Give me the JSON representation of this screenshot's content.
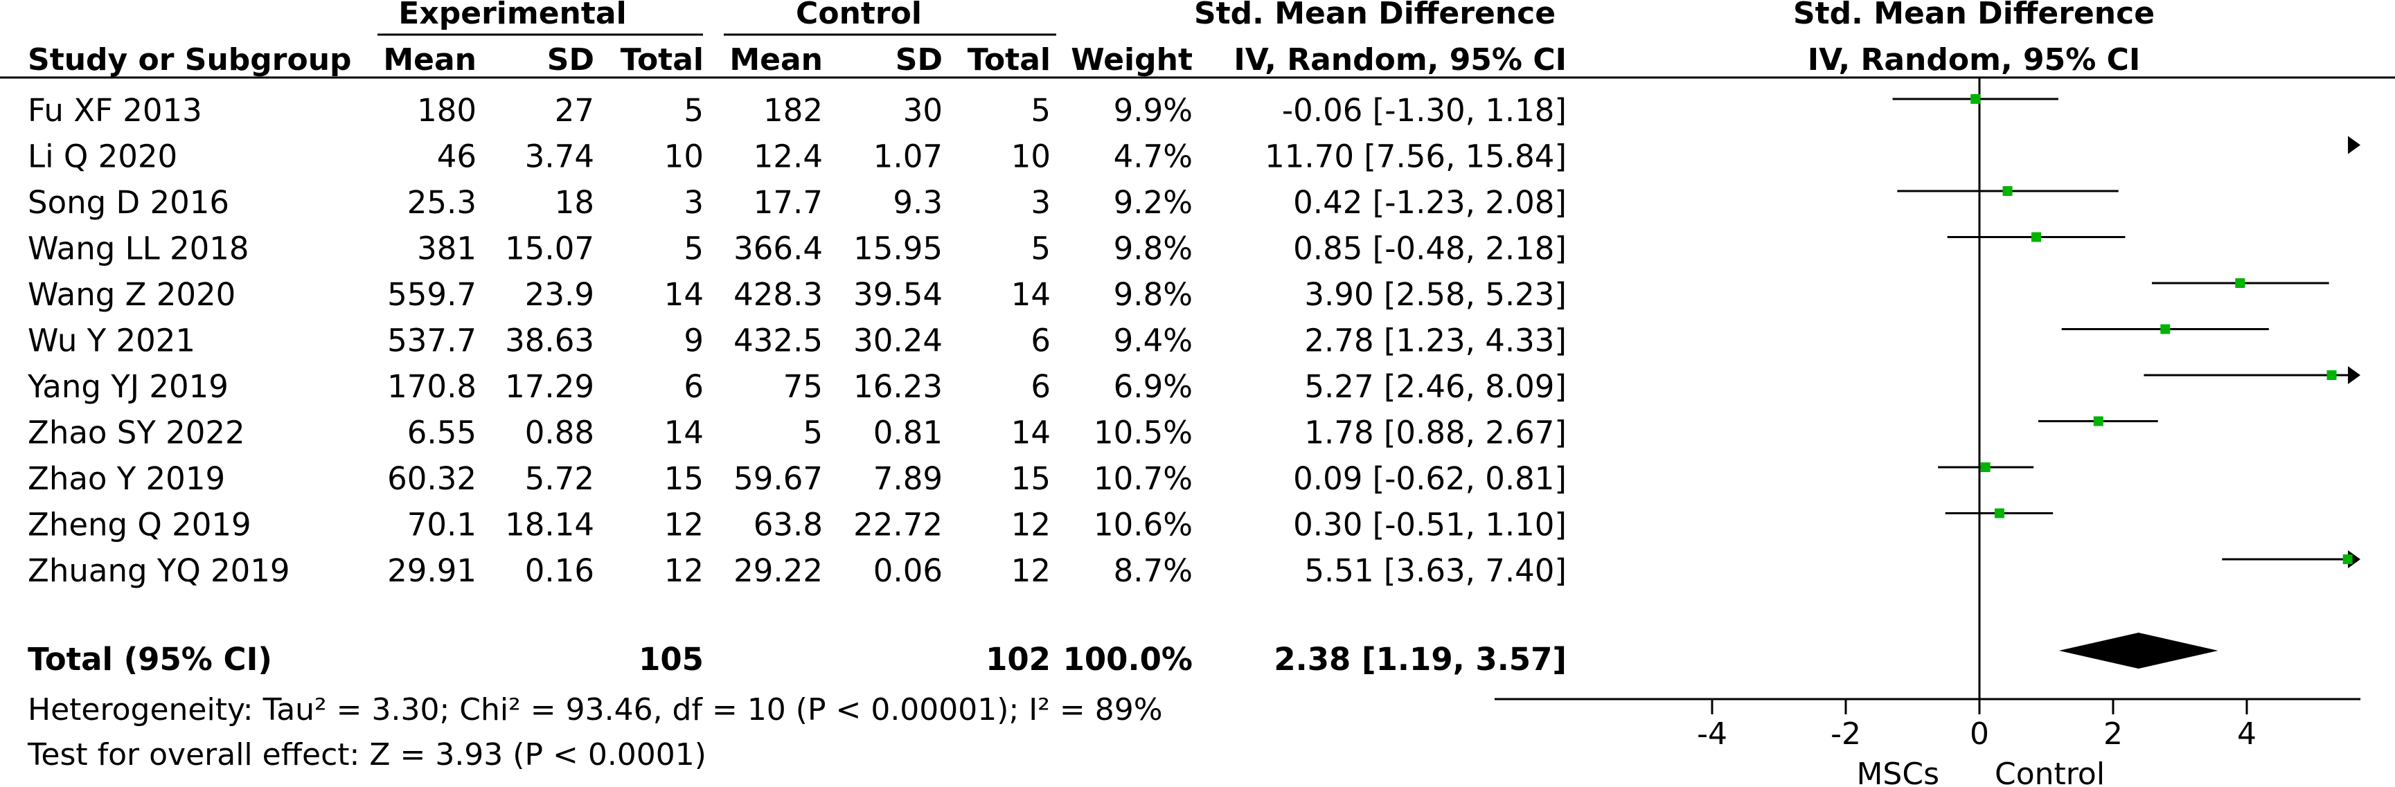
{
  "headers": {
    "experimental": "Experimental",
    "control": "Control",
    "smd_left": "Std. Mean Difference",
    "smd_right": "Std. Mean Difference",
    "study": "Study or Subgroup",
    "mean_e": "Mean",
    "sd_e": "SD",
    "total_e": "Total",
    "mean_c": "Mean",
    "sd_c": "SD",
    "total_c": "Total",
    "weight": "Weight",
    "ci_left": "IV, Random, 95% CI",
    "ci_right": "IV, Random, 95% CI"
  },
  "studies": [
    {
      "name": "Fu XF 2013",
      "mean_e": "180",
      "sd_e": "27",
      "total_e": "5",
      "mean_c": "182",
      "sd_c": "30",
      "total_c": "5",
      "weight": "9.9%",
      "ci_text": "-0.06 [-1.30, 1.18]"
    },
    {
      "name": "Li Q 2020",
      "mean_e": "46",
      "sd_e": "3.74",
      "total_e": "10",
      "mean_c": "12.4",
      "sd_c": "1.07",
      "total_c": "10",
      "weight": "4.7%",
      "ci_text": "11.70 [7.56, 15.84]"
    },
    {
      "name": "Song D 2016",
      "mean_e": "25.3",
      "sd_e": "18",
      "total_e": "3",
      "mean_c": "17.7",
      "sd_c": "9.3",
      "total_c": "3",
      "weight": "9.2%",
      "ci_text": "0.42 [-1.23, 2.08]"
    },
    {
      "name": "Wang LL 2018",
      "mean_e": "381",
      "sd_e": "15.07",
      "total_e": "5",
      "mean_c": "366.4",
      "sd_c": "15.95",
      "total_c": "5",
      "weight": "9.8%",
      "ci_text": "0.85 [-0.48, 2.18]"
    },
    {
      "name": "Wang Z 2020",
      "mean_e": "559.7",
      "sd_e": "23.9",
      "total_e": "14",
      "mean_c": "428.3",
      "sd_c": "39.54",
      "total_c": "14",
      "weight": "9.8%",
      "ci_text": "3.90 [2.58, 5.23]"
    },
    {
      "name": "Wu Y 2021",
      "mean_e": "537.7",
      "sd_e": "38.63",
      "total_e": "9",
      "mean_c": "432.5",
      "sd_c": "30.24",
      "total_c": "6",
      "weight": "9.4%",
      "ci_text": "2.78 [1.23, 4.33]"
    },
    {
      "name": "Yang YJ 2019",
      "mean_e": "170.8",
      "sd_e": "17.29",
      "total_e": "6",
      "mean_c": "75",
      "sd_c": "16.23",
      "total_c": "6",
      "weight": "6.9%",
      "ci_text": "5.27 [2.46, 8.09]"
    },
    {
      "name": "Zhao SY 2022",
      "mean_e": "6.55",
      "sd_e": "0.88",
      "total_e": "14",
      "mean_c": "5",
      "sd_c": "0.81",
      "total_c": "14",
      "weight": "10.5%",
      "ci_text": "1.78 [0.88, 2.67]"
    },
    {
      "name": "Zhao Y 2019",
      "mean_e": "60.32",
      "sd_e": "5.72",
      "total_e": "15",
      "mean_c": "59.67",
      "sd_c": "7.89",
      "total_c": "15",
      "weight": "10.7%",
      "ci_text": "0.09 [-0.62, 0.81]"
    },
    {
      "name": "Zheng Q 2019",
      "mean_e": "70.1",
      "sd_e": "18.14",
      "total_e": "12",
      "mean_c": "63.8",
      "sd_c": "22.72",
      "total_c": "12",
      "weight": "10.6%",
      "ci_text": "0.30 [-0.51, 1.10]"
    },
    {
      "name": "Zhuang YQ 2019",
      "mean_e": "29.91",
      "sd_e": "0.16",
      "total_e": "12",
      "mean_c": "29.22",
      "sd_c": "0.06",
      "total_c": "12",
      "weight": "8.7%",
      "ci_text": "5.51 [3.63, 7.40]"
    }
  ],
  "total": {
    "label": "Total (95% CI)",
    "total_e": "105",
    "total_c": "102",
    "weight": "100.0%",
    "ci_text": "2.38 [1.19, 3.57]"
  },
  "footer": {
    "heterogeneity": "Heterogeneity: Tau² = 3.30; Chi² = 93.46, df = 10 (P < 0.00001); I² = 89%",
    "overall": "Test for overall effect: Z = 3.93 (P < 0.0001)"
  },
  "axis": {
    "left_label": "MSCs",
    "right_label": "Control"
  },
  "colors": {
    "square": "#00b400",
    "line": "#000000"
  },
  "chart_data": {
    "type": "forest",
    "xlim": [
      -5.7,
      5.7
    ],
    "ticks": [
      -4,
      -2,
      0,
      2,
      4
    ],
    "tick_labels": [
      "-4",
      "-2",
      "0",
      "2",
      "4"
    ],
    "null_line": 0,
    "points": [
      {
        "est": -0.06,
        "lo": -1.3,
        "hi": 1.18
      },
      {
        "est": 11.7,
        "lo": 7.56,
        "hi": 15.84
      },
      {
        "est": 0.42,
        "lo": -1.23,
        "hi": 2.08
      },
      {
        "est": 0.85,
        "lo": -0.48,
        "hi": 2.18
      },
      {
        "est": 3.9,
        "lo": 2.58,
        "hi": 5.23
      },
      {
        "est": 2.78,
        "lo": 1.23,
        "hi": 4.33
      },
      {
        "est": 5.27,
        "lo": 2.46,
        "hi": 8.09
      },
      {
        "est": 1.78,
        "lo": 0.88,
        "hi": 2.67
      },
      {
        "est": 0.09,
        "lo": -0.62,
        "hi": 0.81
      },
      {
        "est": 0.3,
        "lo": -0.51,
        "hi": 1.1
      },
      {
        "est": 5.51,
        "lo": 3.63,
        "hi": 7.4
      }
    ],
    "pooled": {
      "est": 2.38,
      "lo": 1.19,
      "hi": 3.57
    }
  }
}
